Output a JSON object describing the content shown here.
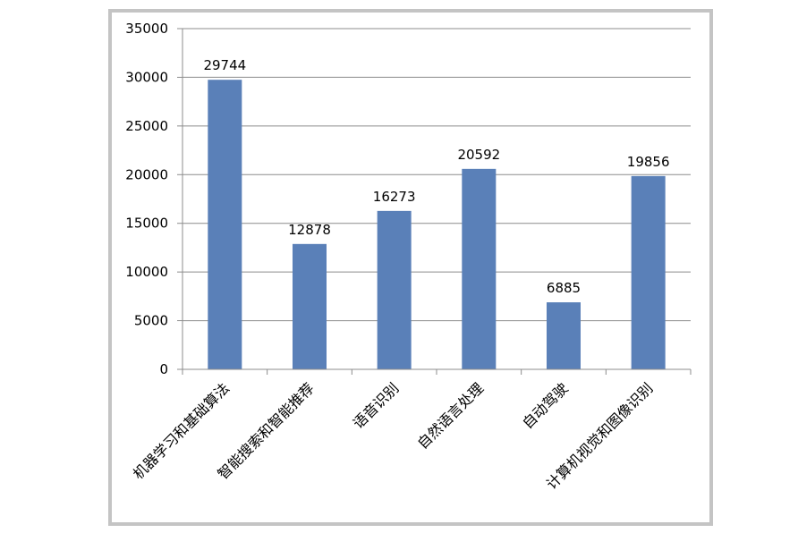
{
  "chart_data": {
    "type": "bar",
    "categories": [
      "机器学习和基础算法",
      "智能搜索和智能推荐",
      "语音识别",
      "自然语言处理",
      "自动驾驶",
      "计算机视觉和图像识别"
    ],
    "values": [
      29744,
      12878,
      16273,
      20592,
      6885,
      19856
    ],
    "data_labels": [
      "29744",
      "12878",
      "16273",
      "20592",
      "6885",
      "19856"
    ],
    "title": "",
    "xlabel": "",
    "ylabel": "",
    "ylim": [
      0,
      35000
    ],
    "yticks": [
      0,
      5000,
      10000,
      15000,
      20000,
      25000,
      30000,
      35000
    ],
    "ytick_labels": [
      "0",
      "5000",
      "10000",
      "15000",
      "20000",
      "25000",
      "30000",
      "35000"
    ],
    "grid": true,
    "legend": "none",
    "colors": {
      "bar": "#5a80b8",
      "grid": "#8c8c8c",
      "axis": "#8c8c8c",
      "frame": "#c4c4c4"
    }
  }
}
